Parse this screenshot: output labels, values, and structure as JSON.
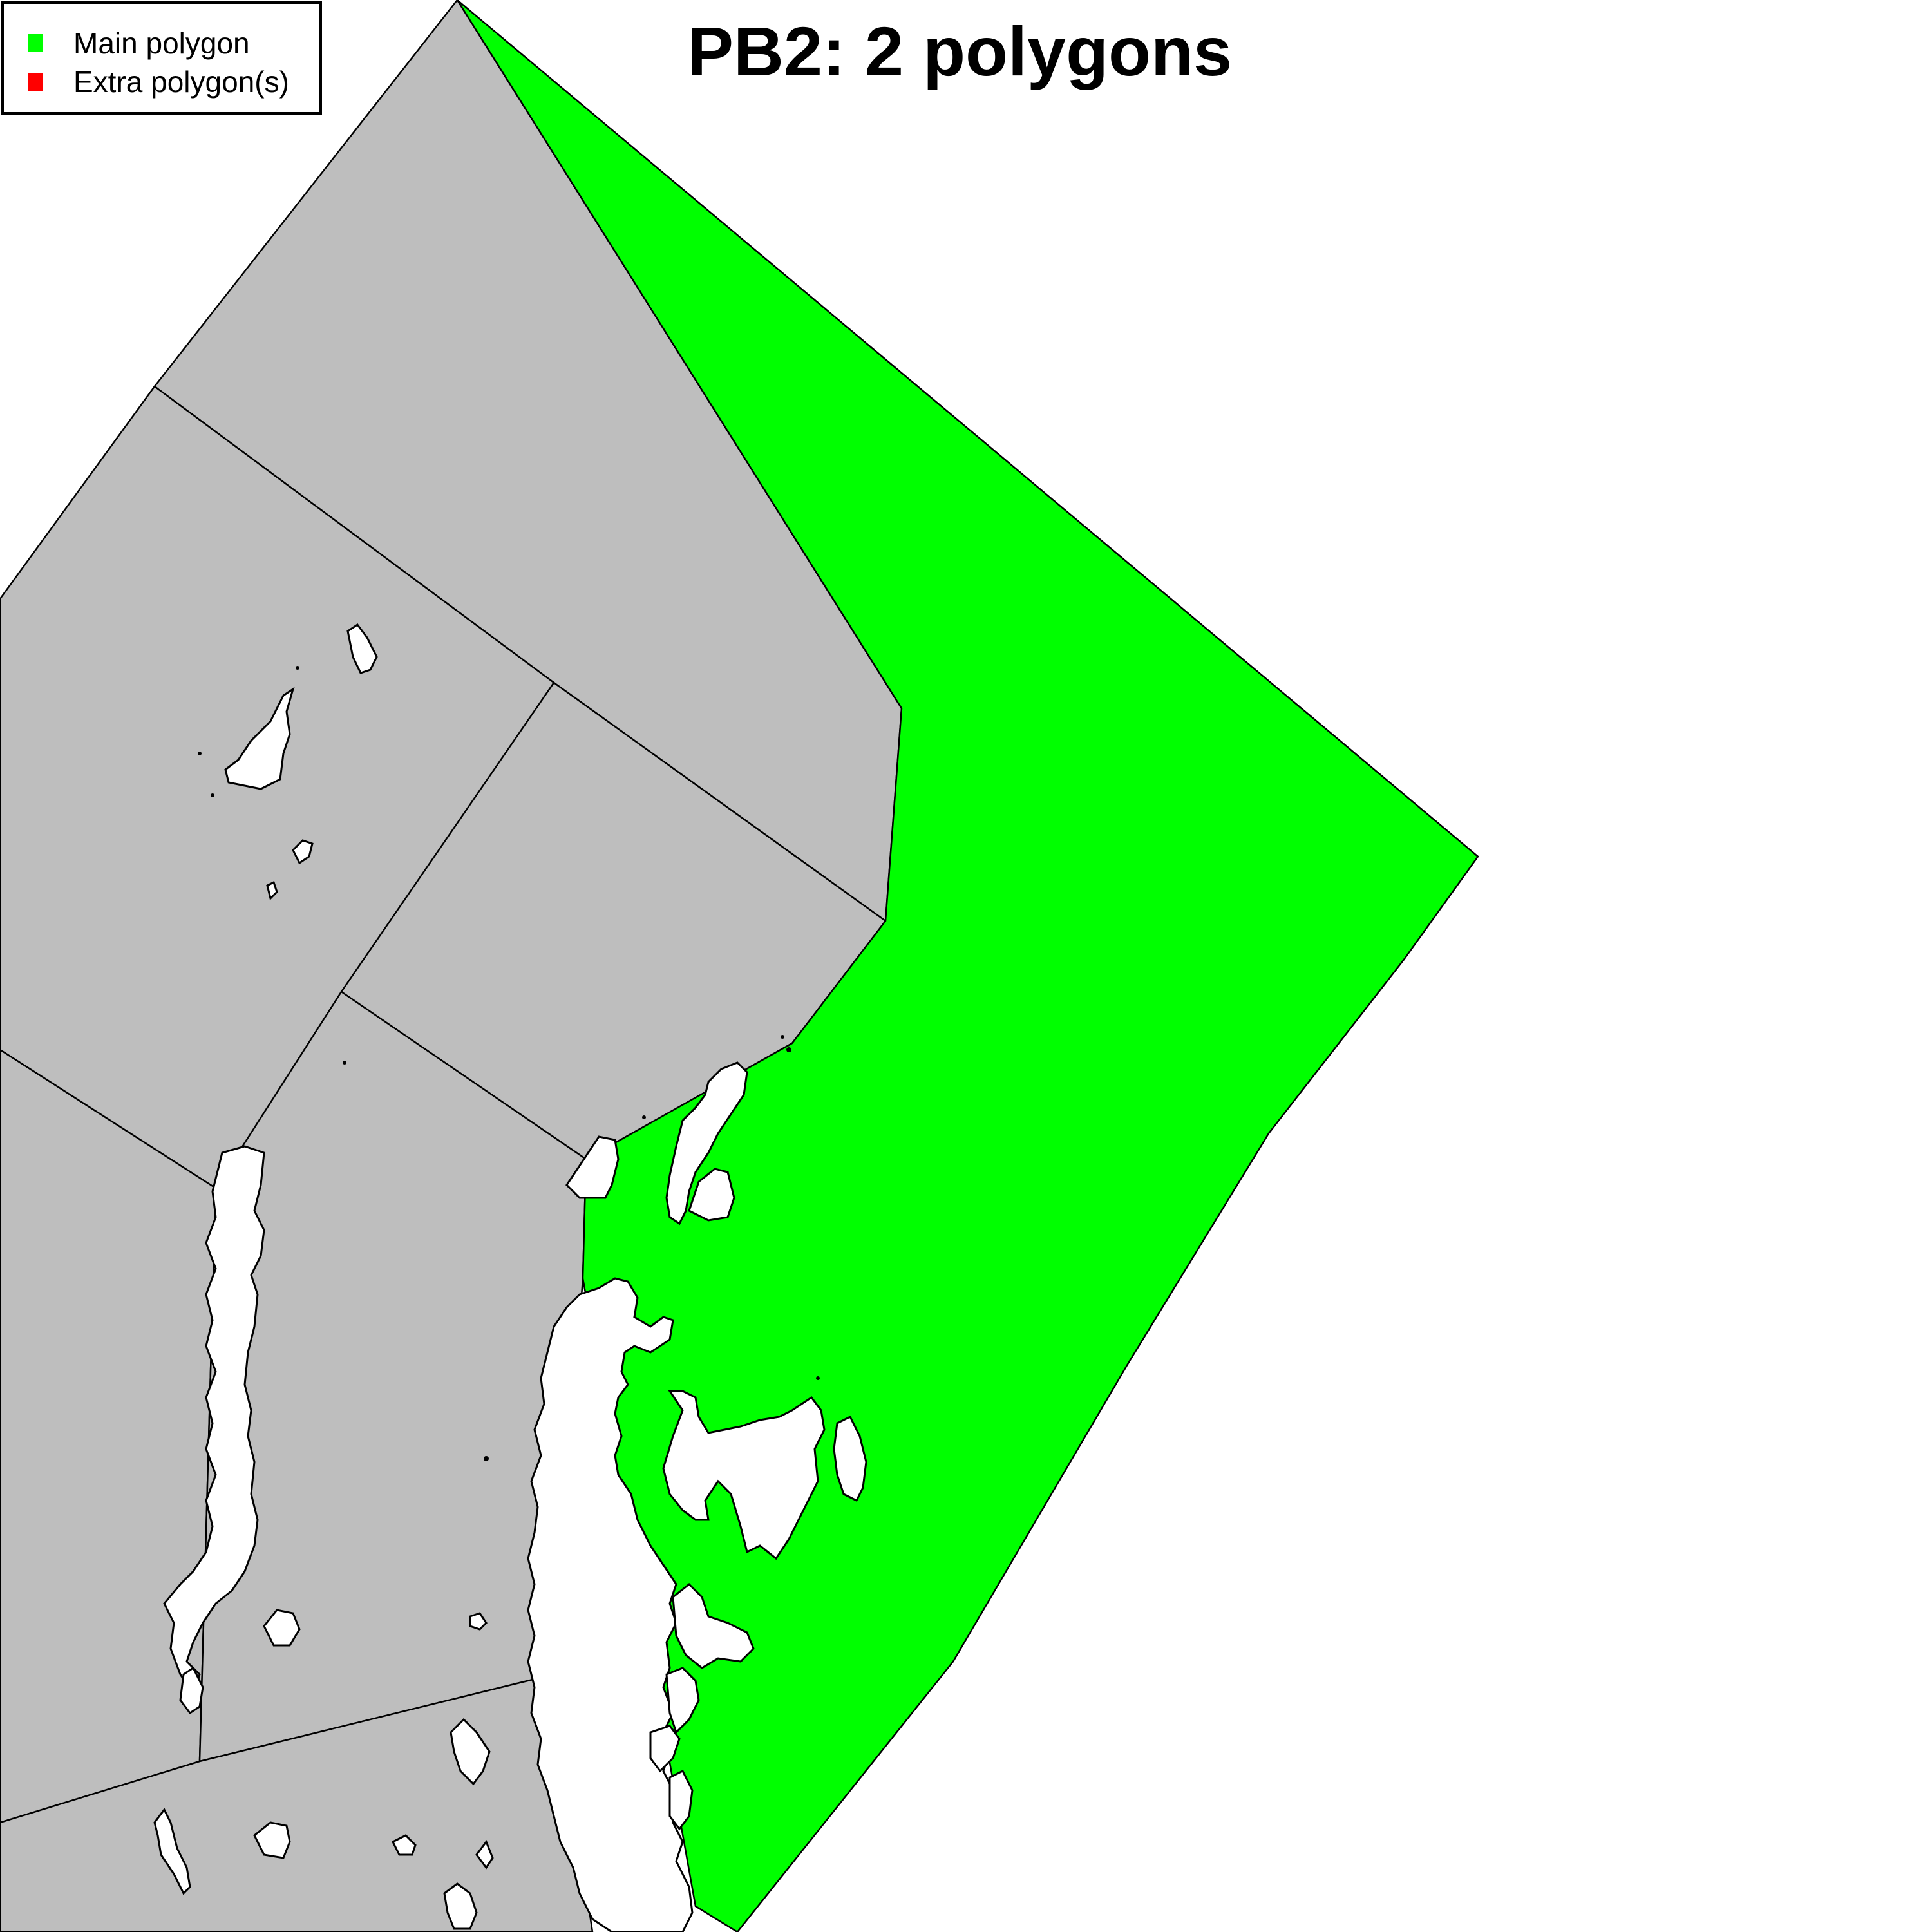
{
  "title": "PB2: 2 polygons",
  "colors": {
    "main_polygon": "#00ff00",
    "extra_polygon": "#ff0000",
    "other_area": "#bebebe",
    "land": "#ffffff",
    "border": "#000000"
  },
  "legend": {
    "items": [
      {
        "label": "Main polygon",
        "color": "#00ff00"
      },
      {
        "label": "Extra polygon(s)",
        "color": "#ff0000"
      }
    ]
  }
}
